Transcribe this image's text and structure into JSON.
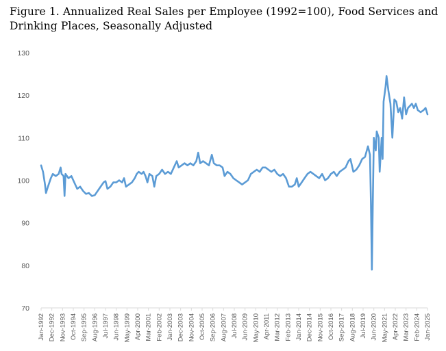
{
  "figure_title": "Figure 1. Annualized Real Sales per Employee (1992=100), Food Services and Drinking Places, Seasonally Adjusted",
  "series_color": "#5B9BD5",
  "chart_data": {
    "type": "line",
    "title": "Figure 1. Annualized Real Sales per Employee (1992=100), Food Services and Drinking Places, Seasonally Adjusted",
    "xlabel": "",
    "ylabel": "",
    "ylim": [
      70,
      130
    ],
    "yticks": [
      70,
      80,
      90,
      100,
      110,
      120,
      130
    ],
    "x_start": "Jan-1992",
    "x_end": "Jan-2025",
    "xtick_labels": [
      "Jan-1992",
      "Dec-1992",
      "Nov-1993",
      "Oct-1994",
      "Sep-1995",
      "Aug-1996",
      "Jul-1997",
      "Jun-1998",
      "May-1999",
      "Apr-2000",
      "Mar-2001",
      "Feb-2002",
      "Jan-2003",
      "Dec-2003",
      "Nov-2004",
      "Oct-2005",
      "Sep-2006",
      "Aug-2007",
      "Jul-2008",
      "Jun-2009",
      "May-2010",
      "Apr-2011",
      "Mar-2012",
      "Feb-2013",
      "Jan-2014",
      "Dec-2014",
      "Nov-2015",
      "Oct-2016",
      "Sep-2017",
      "Aug-2018",
      "Jul-2019",
      "Jun-2020",
      "May-2021",
      "Apr-2022",
      "Mar-2023",
      "Feb-2024",
      "Jan-2025"
    ],
    "grid": false,
    "legend": "none",
    "series": [
      {
        "points": [
          [
            "1992-01",
            103.5
          ],
          [
            "1992-03",
            102.0
          ],
          [
            "1992-05",
            99.0
          ],
          [
            "1992-06",
            97.0
          ],
          [
            "1992-08",
            98.5
          ],
          [
            "1992-11",
            100.5
          ],
          [
            "1993-01",
            101.5
          ],
          [
            "1993-04",
            101.0
          ],
          [
            "1993-07",
            101.5
          ],
          [
            "1993-09",
            103.0
          ],
          [
            "1993-10",
            101.5
          ],
          [
            "1993-12",
            101.0
          ],
          [
            "1994-01",
            96.3
          ],
          [
            "1994-02",
            101.5
          ],
          [
            "1994-05",
            100.5
          ],
          [
            "1994-08",
            101.0
          ],
          [
            "1994-11",
            99.5
          ],
          [
            "1995-02",
            98.0
          ],
          [
            "1995-05",
            98.5
          ],
          [
            "1995-08",
            97.5
          ],
          [
            "1995-11",
            96.8
          ],
          [
            "1996-02",
            97.0
          ],
          [
            "1996-05",
            96.3
          ],
          [
            "1996-08",
            96.5
          ],
          [
            "1996-11",
            97.5
          ],
          [
            "1997-02",
            98.5
          ],
          [
            "1997-05",
            99.5
          ],
          [
            "1997-07",
            99.8
          ],
          [
            "1997-09",
            98.0
          ],
          [
            "1997-12",
            98.5
          ],
          [
            "1998-03",
            99.5
          ],
          [
            "1998-06",
            99.5
          ],
          [
            "1998-09",
            100.0
          ],
          [
            "1998-12",
            99.5
          ],
          [
            "1999-02",
            100.5
          ],
          [
            "1999-04",
            98.5
          ],
          [
            "1999-07",
            99.0
          ],
          [
            "1999-10",
            99.5
          ],
          [
            "2000-01",
            100.5
          ],
          [
            "2000-03",
            101.5
          ],
          [
            "2000-05",
            102.0
          ],
          [
            "2000-08",
            101.5
          ],
          [
            "2000-10",
            102.0
          ],
          [
            "2000-12",
            101.0
          ],
          [
            "2001-02",
            99.5
          ],
          [
            "2001-04",
            101.5
          ],
          [
            "2001-07",
            101.0
          ],
          [
            "2001-09",
            98.5
          ],
          [
            "2001-11",
            101.0
          ],
          [
            "2002-02",
            101.5
          ],
          [
            "2002-05",
            102.5
          ],
          [
            "2002-08",
            101.5
          ],
          [
            "2002-11",
            102.0
          ],
          [
            "2003-02",
            101.5
          ],
          [
            "2003-05",
            103.0
          ],
          [
            "2003-08",
            104.5
          ],
          [
            "2003-10",
            103.0
          ],
          [
            "2004-01",
            103.5
          ],
          [
            "2004-04",
            104.0
          ],
          [
            "2004-07",
            103.5
          ],
          [
            "2004-10",
            104.0
          ],
          [
            "2005-01",
            103.5
          ],
          [
            "2005-04",
            104.5
          ],
          [
            "2005-06",
            106.5
          ],
          [
            "2005-08",
            104.0
          ],
          [
            "2005-11",
            104.5
          ],
          [
            "2006-02",
            104.0
          ],
          [
            "2006-05",
            103.5
          ],
          [
            "2006-08",
            106.0
          ],
          [
            "2006-10",
            104.0
          ],
          [
            "2007-01",
            103.5
          ],
          [
            "2007-04",
            103.5
          ],
          [
            "2007-07",
            103.0
          ],
          [
            "2007-09",
            101.0
          ],
          [
            "2007-12",
            102.0
          ],
          [
            "2008-03",
            101.5
          ],
          [
            "2008-06",
            100.5
          ],
          [
            "2008-09",
            100.0
          ],
          [
            "2008-12",
            99.5
          ],
          [
            "2009-03",
            99.0
          ],
          [
            "2009-06",
            99.5
          ],
          [
            "2009-09",
            100.0
          ],
          [
            "2009-12",
            101.5
          ],
          [
            "2010-03",
            102.0
          ],
          [
            "2010-06",
            102.5
          ],
          [
            "2010-09",
            102.0
          ],
          [
            "2010-12",
            103.0
          ],
          [
            "2011-03",
            103.0
          ],
          [
            "2011-06",
            102.5
          ],
          [
            "2011-09",
            102.0
          ],
          [
            "2011-12",
            102.5
          ],
          [
            "2012-03",
            101.5
          ],
          [
            "2012-06",
            101.0
          ],
          [
            "2012-09",
            101.5
          ],
          [
            "2012-12",
            100.5
          ],
          [
            "2013-03",
            98.5
          ],
          [
            "2013-06",
            98.5
          ],
          [
            "2013-09",
            99.0
          ],
          [
            "2013-11",
            100.5
          ],
          [
            "2014-01",
            98.5
          ],
          [
            "2014-04",
            99.5
          ],
          [
            "2014-07",
            100.5
          ],
          [
            "2014-10",
            101.5
          ],
          [
            "2015-01",
            102.0
          ],
          [
            "2015-04",
            101.5
          ],
          [
            "2015-07",
            101.0
          ],
          [
            "2015-10",
            100.5
          ],
          [
            "2016-01",
            101.5
          ],
          [
            "2016-04",
            100.0
          ],
          [
            "2016-07",
            100.5
          ],
          [
            "2016-10",
            101.5
          ],
          [
            "2017-01",
            102.0
          ],
          [
            "2017-04",
            101.0
          ],
          [
            "2017-07",
            102.0
          ],
          [
            "2017-10",
            102.5
          ],
          [
            "2018-01",
            103.0
          ],
          [
            "2018-04",
            104.5
          ],
          [
            "2018-06",
            105.0
          ],
          [
            "2018-09",
            102.0
          ],
          [
            "2018-12",
            102.5
          ],
          [
            "2019-03",
            103.5
          ],
          [
            "2019-06",
            105.0
          ],
          [
            "2019-09",
            105.5
          ],
          [
            "2019-12",
            108.0
          ],
          [
            "2020-02",
            106.0
          ],
          [
            "2020-03",
            95.0
          ],
          [
            "2020-04",
            79.0
          ],
          [
            "2020-05",
            95.0
          ],
          [
            "2020-06",
            110.0
          ],
          [
            "2020-08",
            107.0
          ],
          [
            "2020-09",
            111.5
          ],
          [
            "2020-11",
            110.0
          ],
          [
            "2020-12",
            102.0
          ],
          [
            "2021-02",
            110.0
          ],
          [
            "2021-03",
            105.0
          ],
          [
            "2021-04",
            118.5
          ],
          [
            "2021-06",
            122.0
          ],
          [
            "2021-07",
            124.5
          ],
          [
            "2021-09",
            121.0
          ],
          [
            "2021-11",
            118.0
          ],
          [
            "2022-01",
            110.0
          ],
          [
            "2022-03",
            119.0
          ],
          [
            "2022-05",
            118.5
          ],
          [
            "2022-07",
            116.0
          ],
          [
            "2022-09",
            117.0
          ],
          [
            "2022-11",
            114.5
          ],
          [
            "2023-01",
            119.5
          ],
          [
            "2023-03",
            115.5
          ],
          [
            "2023-05",
            117.0
          ],
          [
            "2023-07",
            117.5
          ],
          [
            "2023-09",
            118.0
          ],
          [
            "2023-11",
            117.0
          ],
          [
            "2024-01",
            118.0
          ],
          [
            "2024-03",
            116.5
          ],
          [
            "2024-06",
            116.0
          ],
          [
            "2024-09",
            116.5
          ],
          [
            "2024-11",
            117.0
          ],
          [
            "2025-01",
            115.5
          ]
        ]
      }
    ]
  }
}
